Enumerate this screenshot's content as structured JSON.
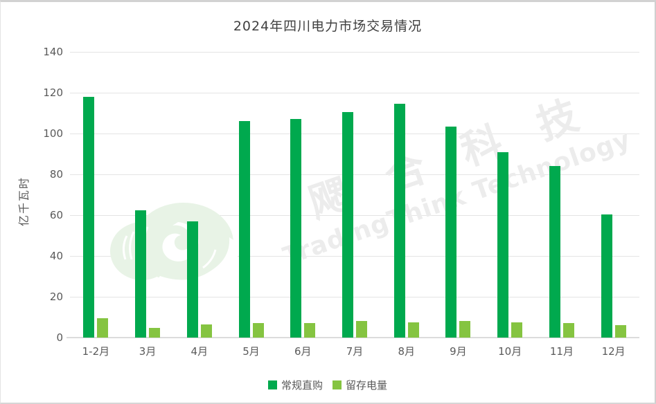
{
  "title": "2024年四川电力市场交易情况",
  "watermark": {
    "cn": "飔合科技",
    "en": "TradingThink Technology"
  },
  "colors": {
    "series_regular": "#00a94e",
    "series_retained": "#85c441",
    "gridline": "#e4e4e4",
    "axis_text": "#595959",
    "title_text": "#404040",
    "watermark": "#ececec",
    "logo_tint": "#e8f3e6"
  },
  "chart_data": {
    "type": "bar",
    "title": "2024年四川电力市场交易情况",
    "categories": [
      "1-2月",
      "3月",
      "4月",
      "5月",
      "6月",
      "7月",
      "8月",
      "9月",
      "10月",
      "11月",
      "12月"
    ],
    "series": [
      {
        "name": "常规直购",
        "color": "#00a94e",
        "values": [
          118,
          62.5,
          57,
          106,
          107,
          110.5,
          114.5,
          103.5,
          91,
          84,
          60.5
        ]
      },
      {
        "name": "留存电量",
        "color": "#85c441",
        "values": [
          9.5,
          4.7,
          6.5,
          7.2,
          7.2,
          8,
          7.6,
          8,
          7.3,
          7.2,
          6
        ]
      }
    ],
    "xlabel": "",
    "ylabel": "亿千瓦时",
    "ylim": [
      0,
      140
    ],
    "yticks": [
      0,
      20,
      40,
      60,
      80,
      100,
      120,
      140
    ],
    "grid": true,
    "legend_position": "bottom"
  }
}
